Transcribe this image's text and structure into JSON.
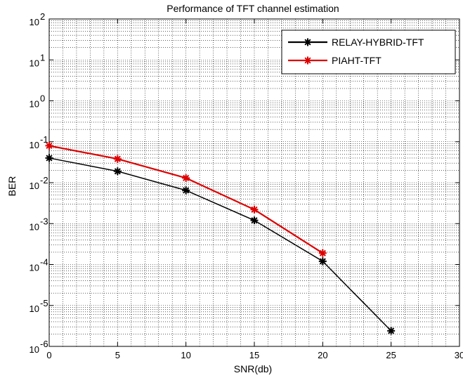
{
  "chart_data": {
    "type": "line",
    "title": "Performance of TFT channel estimation",
    "xlabel": "SNR(db)",
    "ylabel": "BER",
    "xlim": [
      0,
      30
    ],
    "ylim": [
      1e-06,
      100
    ],
    "yscale": "log",
    "grid": true,
    "legend_position": "top-right",
    "x_ticks": [
      "0",
      "5",
      "10",
      "15",
      "20",
      "25",
      "30"
    ],
    "y_tick_exponents": [
      "2",
      "1",
      "0",
      "-1",
      "-2",
      "-3",
      "-4",
      "-5",
      "-6"
    ],
    "y_tick_base": "10",
    "series": [
      {
        "name": "RELAY-HYBRID-TFT",
        "color": "#000000",
        "x": [
          0,
          5,
          10,
          15,
          20,
          25
        ],
        "y": [
          0.04,
          0.019,
          0.0065,
          0.0012,
          0.00012,
          2.4e-06
        ]
      },
      {
        "name": "PIAHT-TFT",
        "color": "#dd0000",
        "x": [
          0,
          5,
          10,
          15,
          20
        ],
        "y": [
          0.08,
          0.038,
          0.013,
          0.0022,
          0.00019
        ]
      }
    ]
  }
}
